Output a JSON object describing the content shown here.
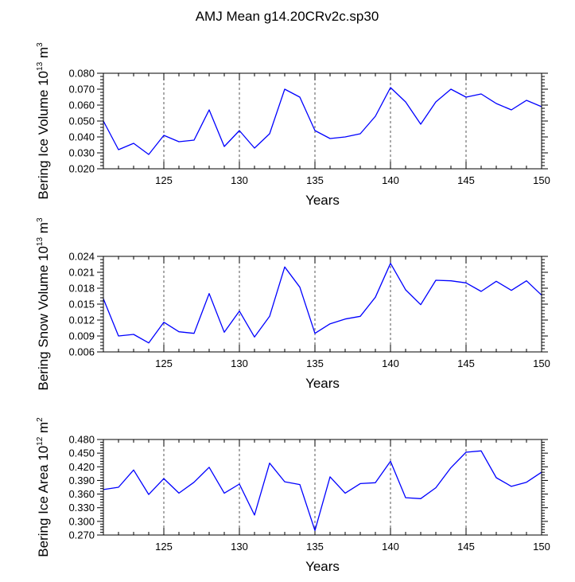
{
  "title": "AMJ Mean g14.20CRv2c.sp30",
  "colors": {
    "series": "#0000ff",
    "axis": "#000000",
    "grid": "#555555"
  },
  "chart_data": [
    {
      "type": "line",
      "xlabel": "Years",
      "ylabel_base": "Bering Ice Volume 10",
      "ylabel_exp": "13",
      "ylabel_unit": " m",
      "ylabel_unit_exp": "3",
      "xlim": [
        121,
        150
      ],
      "ylim": [
        0.02,
        0.08
      ],
      "xticks": [
        125,
        130,
        135,
        140,
        145,
        150
      ],
      "xtick_labels": [
        "125",
        "130",
        "135",
        "140",
        "145",
        "150"
      ],
      "yticks": [
        0.02,
        0.03,
        0.04,
        0.05,
        0.06,
        0.07,
        0.08
      ],
      "ytick_labels": [
        "0.020",
        "0.030",
        "0.040",
        "0.050",
        "0.060",
        "0.070",
        "0.080"
      ],
      "x": [
        121,
        122,
        123,
        124,
        125,
        126,
        127,
        128,
        129,
        130,
        131,
        132,
        133,
        134,
        135,
        136,
        137,
        138,
        139,
        140,
        141,
        142,
        143,
        144,
        145,
        146,
        147,
        148,
        149,
        150
      ],
      "values": [
        0.05,
        0.032,
        0.036,
        0.029,
        0.041,
        0.037,
        0.038,
        0.057,
        0.034,
        0.044,
        0.033,
        0.042,
        0.07,
        0.065,
        0.044,
        0.039,
        0.04,
        0.042,
        0.053,
        0.071,
        0.062,
        0.048,
        0.062,
        0.07,
        0.065,
        0.067,
        0.061,
        0.057,
        0.063,
        0.059
      ],
      "grid_x": [
        125,
        130,
        135,
        140,
        145
      ]
    },
    {
      "type": "line",
      "xlabel": "Years",
      "ylabel_base": "Bering Snow Volume 10",
      "ylabel_exp": "13",
      "ylabel_unit": " m",
      "ylabel_unit_exp": "3",
      "xlim": [
        121,
        150
      ],
      "ylim": [
        0.006,
        0.024
      ],
      "xticks": [
        125,
        130,
        135,
        140,
        145,
        150
      ],
      "xtick_labels": [
        "125",
        "130",
        "135",
        "140",
        "145",
        "150"
      ],
      "yticks": [
        0.006,
        0.009,
        0.012,
        0.015,
        0.018,
        0.021,
        0.024
      ],
      "ytick_labels": [
        "0.006",
        "0.009",
        "0.012",
        "0.015",
        "0.018",
        "0.021",
        "0.024"
      ],
      "x": [
        121,
        122,
        123,
        124,
        125,
        126,
        127,
        128,
        129,
        130,
        131,
        132,
        133,
        134,
        135,
        136,
        137,
        138,
        139,
        140,
        141,
        142,
        143,
        144,
        145,
        146,
        147,
        148,
        149,
        150
      ],
      "values": [
        0.016,
        0.009,
        0.0093,
        0.0077,
        0.0116,
        0.0098,
        0.0095,
        0.017,
        0.0097,
        0.0137,
        0.0088,
        0.0127,
        0.022,
        0.0182,
        0.0095,
        0.0113,
        0.0122,
        0.0127,
        0.0163,
        0.0227,
        0.0177,
        0.0149,
        0.0195,
        0.0194,
        0.019,
        0.0174,
        0.0193,
        0.0176,
        0.0194,
        0.0167
      ],
      "grid_x": [
        125,
        130,
        135,
        140,
        145
      ]
    },
    {
      "type": "line",
      "xlabel": "Years",
      "ylabel_base": "Bering Ice Area 10",
      "ylabel_exp": "12",
      "ylabel_unit": " m",
      "ylabel_unit_exp": "2",
      "xlim": [
        121,
        150
      ],
      "ylim": [
        0.27,
        0.48
      ],
      "xticks": [
        125,
        130,
        135,
        140,
        145,
        150
      ],
      "xtick_labels": [
        "125",
        "130",
        "135",
        "140",
        "145",
        "150"
      ],
      "yticks": [
        0.27,
        0.3,
        0.33,
        0.36,
        0.39,
        0.42,
        0.45,
        0.48
      ],
      "ytick_labels": [
        "0.270",
        "0.300",
        "0.330",
        "0.360",
        "0.390",
        "0.420",
        "0.450",
        "0.480"
      ],
      "x": [
        121,
        122,
        123,
        124,
        125,
        126,
        127,
        128,
        129,
        130,
        131,
        132,
        133,
        134,
        135,
        136,
        137,
        138,
        139,
        140,
        141,
        142,
        143,
        144,
        145,
        146,
        147,
        148,
        149,
        150
      ],
      "values": [
        0.37,
        0.375,
        0.413,
        0.359,
        0.394,
        0.362,
        0.386,
        0.419,
        0.362,
        0.382,
        0.314,
        0.428,
        0.387,
        0.381,
        0.28,
        0.398,
        0.362,
        0.383,
        0.385,
        0.432,
        0.352,
        0.35,
        0.374,
        0.418,
        0.452,
        0.455,
        0.396,
        0.377,
        0.386,
        0.408
      ],
      "grid_x": [
        125,
        130,
        135,
        140,
        145
      ]
    }
  ]
}
